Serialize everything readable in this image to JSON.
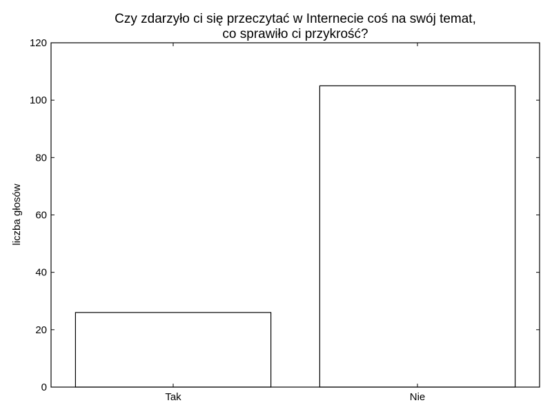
{
  "chart_data": {
    "type": "bar",
    "title": [
      "Czy zdarzyło ci się przeczytać w Internecie coś na swój temat,",
      "co sprawiło ci przykrość?"
    ],
    "xlabel": "",
    "ylabel": "liczba głosów",
    "categories": [
      "Tak",
      "Nie"
    ],
    "values": [
      26,
      105
    ],
    "ylim": [
      0,
      120
    ],
    "yticks": [
      0,
      20,
      40,
      60,
      80,
      100,
      120
    ],
    "grid": false,
    "bar_fill": "#ffffff",
    "bar_stroke": "#000000"
  }
}
